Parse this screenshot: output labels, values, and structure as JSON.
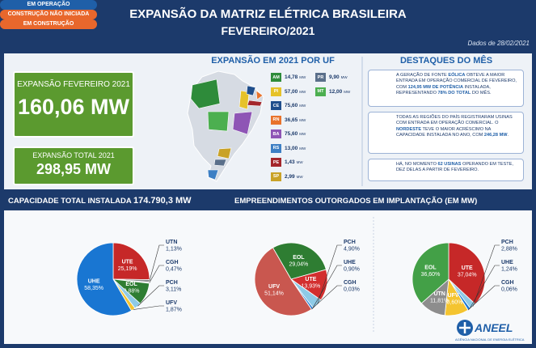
{
  "header": {
    "title": "EXPANSÃO DA MATRIZ ELÉTRICA BRASILEIRA",
    "subtitle": "FEVEREIRO/2021",
    "date_note": "Dados de 28/02/2021"
  },
  "kpis": [
    {
      "label": "EXPANSÃO FEVEREIRO 2021",
      "value": "160,06 MW"
    },
    {
      "label": "EXPANSÃO TOTAL 2021",
      "value": "298,95 MW"
    }
  ],
  "by_state": {
    "title": "EXPANSÃO EM 2021 POR UF",
    "states": [
      {
        "uf": "AM",
        "value": "14,78",
        "unit": "MW",
        "color": "#2e8b3a"
      },
      {
        "uf": "PI",
        "value": "57,00",
        "unit": "MW",
        "color": "#e6c229"
      },
      {
        "uf": "CE",
        "value": "75,60",
        "unit": "MW",
        "color": "#1f4e8c"
      },
      {
        "uf": "RN",
        "value": "36,65",
        "unit": "MW",
        "color": "#e8732c"
      },
      {
        "uf": "BA",
        "value": "75,60",
        "unit": "MW",
        "color": "#8e55b5"
      },
      {
        "uf": "RS",
        "value": "13,00",
        "unit": "MW",
        "color": "#3d7fc4"
      },
      {
        "uf": "PE",
        "value": "1,43",
        "unit": "MW",
        "color": "#a3262b"
      },
      {
        "uf": "SP",
        "value": "2,99",
        "unit": "MW",
        "color": "#c9a227"
      },
      {
        "uf": "PR",
        "value": "9,90",
        "unit": "MW",
        "color": "#5a6f8a"
      },
      {
        "uf": "MT",
        "value": "12,00",
        "unit": "MW",
        "color": "#4caf50"
      }
    ]
  },
  "highlights": {
    "title": "DESTAQUES DO MÊS",
    "items": [
      [
        {
          "text": "A GERAÇÃO DE FONTE "
        },
        {
          "text": "EÓLICA",
          "bold": true
        },
        {
          "text": " OBTEVE A MAIOR ENTRADA EM OPERAÇÃO COMERCIAL DE FEVEREIRO, COM "
        },
        {
          "text": "124,95 MW DE POTÊNCIA",
          "bold": true
        },
        {
          "text": " INSTALADA, REPRESENTANDO "
        },
        {
          "text": "78% DO TOTAL",
          "bold": true
        },
        {
          "text": " DO MÊS."
        }
      ],
      [
        {
          "text": "TODAS AS REGIÕES DO PAÍS REGISTRARAM USINAS COM ENTRADA EM OPERAÇÃO COMERCIAL. O "
        },
        {
          "text": "NORDESTE",
          "bold": true
        },
        {
          "text": " TEVE O MAIOR ACRÉSCIMO NA CAPACIDADE INSTALADA NO ANO, COM "
        },
        {
          "text": "246,28 MW",
          "bold": true
        },
        {
          "text": "."
        }
      ],
      [
        {
          "text": "HÁ, NO MOMENTO "
        },
        {
          "text": "62 USINAS",
          "bold": true
        },
        {
          "text": " OPERANDO EM TESTE, DEZ DELAS A PARTIR DE FEVEREIRO."
        }
      ]
    ]
  },
  "capacity": {
    "label": "CAPACIDADE TOTAL INSTALADA",
    "value": "174.790,3 MW"
  },
  "projects": {
    "title": "EMPREENDIMENTOS OUTORGADOS EM IMPLANTAÇÃO (EM MW)"
  },
  "chart_data": [
    {
      "type": "pie",
      "title": "EM OPERAÇÃO",
      "title_color": "#1f5fa8",
      "categories": [
        "UTE",
        "UTN",
        "CGH",
        "EOL",
        "PCH",
        "UFV",
        "UHE"
      ],
      "values": [
        25.19,
        1.13,
        0.47,
        9.88,
        3.11,
        1.87,
        58.35
      ],
      "value_labels": [
        "25,19%",
        "1,13%",
        "0,47%",
        "9,88%",
        "3,11%",
        "1,87%",
        "58,35%"
      ],
      "colors": [
        "#c62828",
        "#8d8d8d",
        "#d9d9d9",
        "#2e7d32",
        "#8ecae6",
        "#f4c430",
        "#1976d2"
      ]
    },
    {
      "type": "pie",
      "title": "CONSTRUÇÃO NÃO INICIADA",
      "title_color": "#e8672c",
      "categories": [
        "EOL",
        "UTE",
        "PCH",
        "UHE",
        "CGH",
        "UFV"
      ],
      "values": [
        29.04,
        13.93,
        4.9,
        0.9,
        0.03,
        51.14
      ],
      "value_labels": [
        "29,04%",
        "13,93%",
        "4,90%",
        "0,90%",
        "0,03%",
        "51,14%"
      ],
      "colors": [
        "#2e7d32",
        "#d32f2f",
        "#8ecae6",
        "#1976d2",
        "#bdbdbd",
        "#c9574f"
      ]
    },
    {
      "type": "pie",
      "title": "EM CONSTRUÇÃO",
      "title_color": "#e8672c",
      "categories": [
        "UTE",
        "PCH",
        "UHE",
        "CGH",
        "UFV",
        "UTN",
        "EOL"
      ],
      "values": [
        37.04,
        2.88,
        1.24,
        0.06,
        10.6,
        11.81,
        36.6
      ],
      "value_labels": [
        "37,04%",
        "2,88%",
        "1,24%",
        "0,06%",
        "10,60%",
        "11,81%",
        "36,60%"
      ],
      "colors": [
        "#c62828",
        "#8ecae6",
        "#1976d2",
        "#d9d9d9",
        "#f4c430",
        "#8d8d8d",
        "#43a047"
      ]
    }
  ],
  "footer": {
    "logo": "ANEEL",
    "agency": "AGÊNCIA NACIONAL DE ENERGIA ELÉTRICA"
  }
}
